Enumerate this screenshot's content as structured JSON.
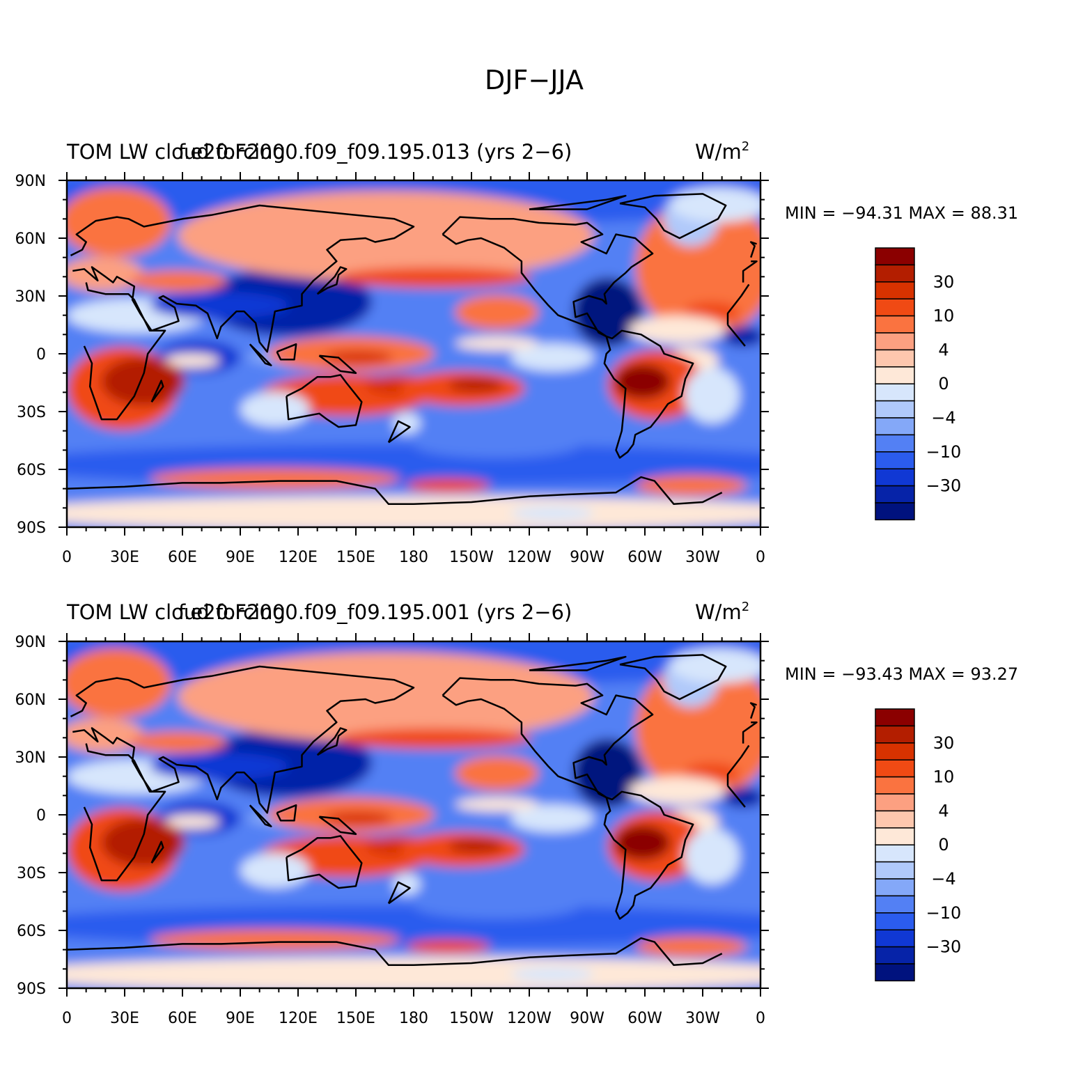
{
  "figure_title": "DJF−JJA",
  "panels": [
    {
      "title_left": "TOM LW cloud forcing",
      "title_center": "f.e20.F2000.f09_f09.195.013 (yrs 2−6)",
      "units": "W/m",
      "units_sup": "2",
      "min_max": "MIN = −94.31  MAX =   88.31",
      "min": -94.31,
      "max": 88.31
    },
    {
      "title_left": "TOM LW cloud forcing",
      "title_center": "f.e20.F2000.f09_f09.195.001 (yrs 2−6)",
      "units": "W/m",
      "units_sup": "2",
      "min_max": "MIN = −93.43  MAX =   93.27",
      "min": -93.43,
      "max": 93.27
    }
  ],
  "axes": {
    "lon_labels": [
      "0",
      "30E",
      "60E",
      "90E",
      "120E",
      "150E",
      "180",
      "150W",
      "120W",
      "90W",
      "60W",
      "30W",
      "0"
    ],
    "lat_labels": [
      "90N",
      "60N",
      "30N",
      "0",
      "30S",
      "60S",
      "90S"
    ]
  },
  "colorbar": {
    "colors": [
      "#8b0000",
      "#b31e00",
      "#d83200",
      "#f04a14",
      "#fa7340",
      "#fca081",
      "#fdc7ae",
      "#fee8d8",
      "#d7e6fc",
      "#b0c9fa",
      "#84a8f8",
      "#5380f4",
      "#2b5cee",
      "#1038d4",
      "#0623a8",
      "#00127e"
    ],
    "labels": [
      "30",
      "10",
      "4",
      "0",
      "−4",
      "−10",
      "−30"
    ]
  },
  "legend_colors": {
    "land_outline": "#000000",
    "positive": "#d83200",
    "negative": "#1038d4"
  }
}
